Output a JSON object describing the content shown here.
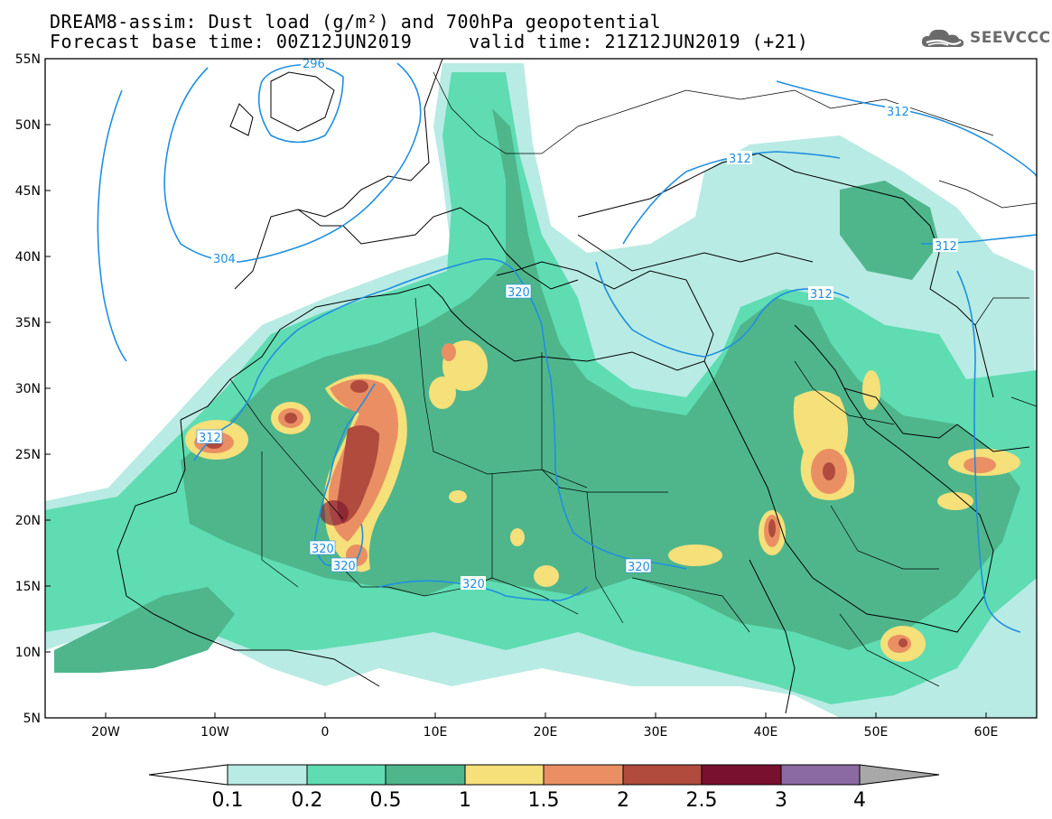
{
  "title": {
    "line1": "DREAM8-assim: Dust load (g/m²) and 700hPa geopotential",
    "line2": "Forecast base time: 00Z12JUN2019     valid time: 21Z12JUN2019 (+21)"
  },
  "logo": {
    "text": "SEEVCCC",
    "icon": "cloud-icon"
  },
  "axes": {
    "lat_labels": [
      "5N",
      "10N",
      "15N",
      "20N",
      "25N",
      "30N",
      "35N",
      "40N",
      "45N",
      "50N",
      "55N"
    ],
    "lon_labels": [
      "20W",
      "10W",
      "0",
      "10E",
      "20E",
      "30E",
      "40E",
      "50E",
      "60E"
    ],
    "lon_range": [
      -25,
      65
    ],
    "lat_range": [
      5,
      55
    ]
  },
  "contour_labels": [
    "296",
    "304",
    "312",
    "312",
    "312",
    "312",
    "312",
    "320",
    "320",
    "320",
    "320",
    "320"
  ],
  "colorbar": {
    "ticks": [
      "0.1",
      "0.2",
      "0.5",
      "1",
      "1.5",
      "2",
      "2.5",
      "3",
      "4"
    ],
    "colors": [
      "#ffffff",
      "#b8ebe3",
      "#5fdcb2",
      "#4fb68c",
      "#f5e07a",
      "#ea8f63",
      "#b04b3e",
      "#7a1030",
      "#8a6aa0",
      "#a8a8a8"
    ]
  },
  "colors": {
    "dust_low": "#b8ebe3",
    "dust_02": "#5fdcb2",
    "dust_05": "#4fb68c",
    "dust_1": "#f5e07a",
    "dust_15": "#ea8f63",
    "dust_2": "#b04b3e",
    "contour": "#1f8fe0"
  }
}
